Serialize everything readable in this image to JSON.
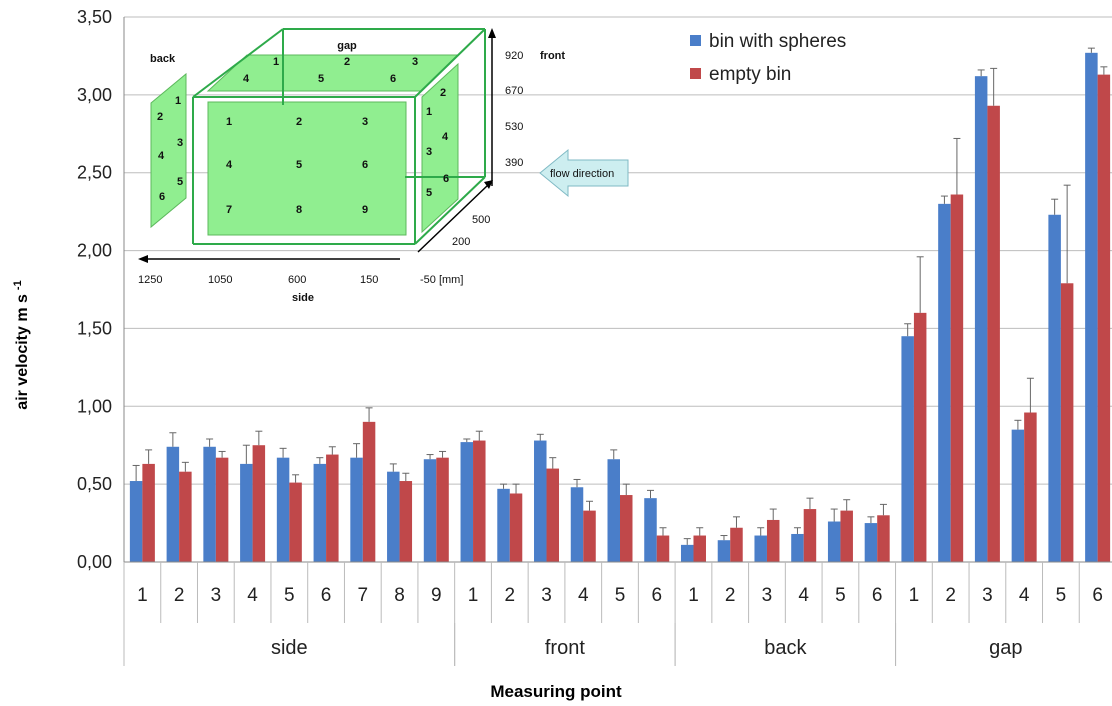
{
  "chart_data": {
    "type": "bar",
    "xlabel": "Measuring point",
    "ylabel": "air velocity m s",
    "ylabel_sup": "-1",
    "ylim": [
      0,
      3.5
    ],
    "yticks": [
      "0,00",
      "0,50",
      "1,00",
      "1,50",
      "2,00",
      "2,50",
      "3,00",
      "3,50"
    ],
    "grid": "horizontal",
    "legend_position": "top-right",
    "groups": [
      {
        "name": "side",
        "categories": [
          "1",
          "2",
          "3",
          "4",
          "5",
          "6",
          "7",
          "8",
          "9"
        ]
      },
      {
        "name": "front",
        "categories": [
          "1",
          "2",
          "3",
          "4",
          "5",
          "6"
        ]
      },
      {
        "name": "back",
        "categories": [
          "1",
          "2",
          "3",
          "4",
          "5",
          "6"
        ]
      },
      {
        "name": "gap",
        "categories": [
          "1",
          "2",
          "3",
          "4",
          "5",
          "6"
        ]
      }
    ],
    "series": [
      {
        "name": "bin with spheres",
        "color": "#4a7ec9",
        "values": [
          0.52,
          0.74,
          0.74,
          0.63,
          0.67,
          0.63,
          0.67,
          0.58,
          0.66,
          0.77,
          0.47,
          0.78,
          0.48,
          0.66,
          0.41,
          0.11,
          0.14,
          0.17,
          0.18,
          0.26,
          0.25,
          1.45,
          2.3,
          3.12,
          0.85,
          2.23,
          3.27
        ],
        "errors": [
          0.1,
          0.09,
          0.05,
          0.12,
          0.06,
          0.04,
          0.09,
          0.05,
          0.03,
          0.02,
          0.03,
          0.04,
          0.05,
          0.06,
          0.05,
          0.04,
          0.03,
          0.05,
          0.04,
          0.08,
          0.04,
          0.08,
          0.05,
          0.04,
          0.06,
          0.1,
          0.03
        ]
      },
      {
        "name": "empty bin",
        "color": "#c0484a",
        "values": [
          0.63,
          0.58,
          0.67,
          0.75,
          0.51,
          0.69,
          0.9,
          0.52,
          0.67,
          0.78,
          0.44,
          0.6,
          0.33,
          0.43,
          0.17,
          0.17,
          0.22,
          0.27,
          0.34,
          0.33,
          0.3,
          1.6,
          2.36,
          2.93,
          0.96,
          1.79,
          3.13
        ],
        "errors": [
          0.09,
          0.06,
          0.04,
          0.09,
          0.05,
          0.05,
          0.09,
          0.05,
          0.04,
          0.06,
          0.06,
          0.07,
          0.06,
          0.07,
          0.05,
          0.05,
          0.07,
          0.07,
          0.07,
          0.07,
          0.07,
          0.36,
          0.36,
          0.24,
          0.22,
          0.63,
          0.05
        ]
      }
    ]
  },
  "inset": {
    "top_label": "gap",
    "back_label": "back",
    "front_label": "front",
    "side_label": "side",
    "gap_numbers": [
      "1",
      "2",
      "3",
      "4",
      "5",
      "6"
    ],
    "back_numbers": [
      "1",
      "2",
      "3",
      "4",
      "5",
      "6"
    ],
    "front_numbers": [
      "2",
      "1",
      "4",
      "3",
      "6",
      "5"
    ],
    "side_numbers": [
      "1",
      "2",
      "3",
      "4",
      "5",
      "6",
      "7",
      "8",
      "9"
    ],
    "height_ticks": [
      "920",
      "670",
      "530",
      "390"
    ],
    "length_ticks": [
      "1250",
      "1050",
      "600",
      "150",
      "-50 [mm]"
    ],
    "depth_ticks": [
      "500",
      "200"
    ],
    "flow_label": "flow direction"
  }
}
